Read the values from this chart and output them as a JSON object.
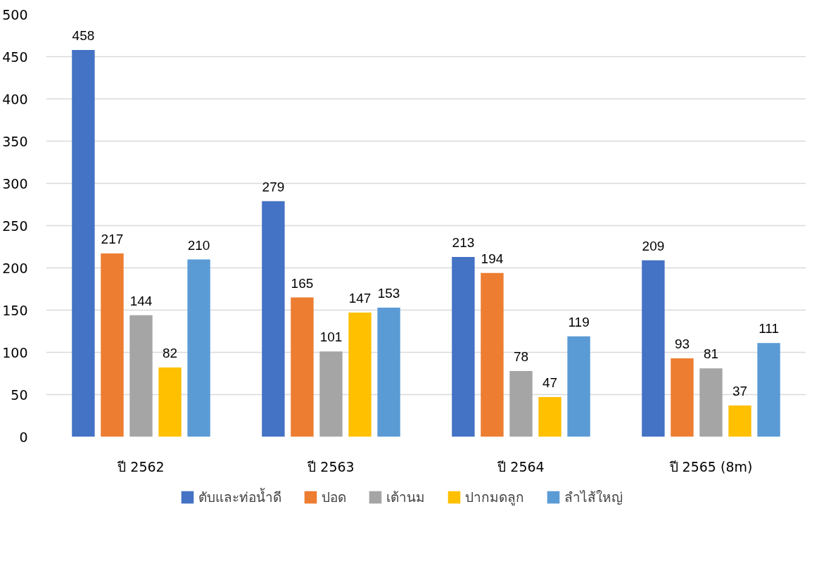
{
  "chart_data": {
    "type": "bar",
    "categories": [
      "ปี 2562",
      "ปี 2563",
      "ปี 2564",
      "ปี 2565 (8m)"
    ],
    "series": [
      {
        "name": "ตับและท่อน้ำดี",
        "color": "#4472c4",
        "values": [
          458,
          279,
          213,
          209
        ]
      },
      {
        "name": "ปอด",
        "color": "#ed7d31",
        "values": [
          217,
          165,
          194,
          93
        ]
      },
      {
        "name": "เต้านม",
        "color": "#a5a5a5",
        "values": [
          144,
          101,
          78,
          81
        ]
      },
      {
        "name": "ปากมดลูก",
        "color": "#ffc000",
        "values": [
          82,
          147,
          47,
          37
        ]
      },
      {
        "name": "ลำไส้ใหญ่",
        "color": "#5b9bd5",
        "values": [
          210,
          153,
          119,
          111
        ]
      }
    ],
    "ylim": [
      0,
      500
    ],
    "yticks": [
      0,
      50,
      100,
      150,
      200,
      250,
      300,
      350,
      400,
      450,
      500
    ],
    "grid": "y",
    "legend": "bottom",
    "data_labels": true
  }
}
